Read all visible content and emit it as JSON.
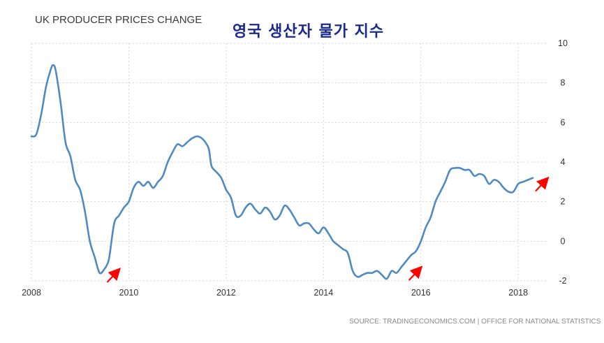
{
  "chart_data": {
    "type": "line",
    "title": "UK PRODUCER PRICES CHANGE",
    "subtitle": "영국 생산자 물가 지수",
    "source": "SOURCE: TRADINGECONOMICS.COM | OFFICE FOR NATIONAL STATISTICS",
    "xlim": [
      2008,
      2018.6
    ],
    "ylim": [
      -2,
      10
    ],
    "x_ticks": [
      2008,
      2010,
      2012,
      2014,
      2016,
      2018
    ],
    "x_tick_labels": [
      "2008",
      "2010",
      "2012",
      "2014",
      "2016",
      "2018"
    ],
    "y_ticks": [
      10,
      8,
      6,
      4,
      2,
      0,
      -2
    ],
    "y_tick_labels": [
      "10",
      "8",
      "6",
      "4",
      "2",
      "0",
      "-2"
    ],
    "grid": true,
    "line_color": "#4f8bc0",
    "arrow_color": "#ff0000",
    "series": [
      {
        "x": [
          2008.0,
          2008.1,
          2008.2,
          2008.3,
          2008.4,
          2008.45,
          2008.5,
          2008.6,
          2008.7,
          2008.8,
          2008.9,
          2009.0,
          2009.1,
          2009.2,
          2009.3,
          2009.4,
          2009.5,
          2009.55,
          2009.6,
          2009.7,
          2009.8,
          2009.9,
          2010.0,
          2010.1,
          2010.2,
          2010.3,
          2010.4,
          2010.5,
          2010.6,
          2010.7,
          2010.8,
          2010.9,
          2011.0,
          2011.1,
          2011.2,
          2011.3,
          2011.4,
          2011.5,
          2011.6,
          2011.65,
          2011.7,
          2011.8,
          2011.9,
          2012.0,
          2012.1,
          2012.2,
          2012.3,
          2012.4,
          2012.5,
          2012.6,
          2012.7,
          2012.8,
          2012.9,
          2013.0,
          2013.1,
          2013.2,
          2013.3,
          2013.4,
          2013.5,
          2013.6,
          2013.7,
          2013.8,
          2013.9,
          2014.0,
          2014.1,
          2014.2,
          2014.3,
          2014.4,
          2014.5,
          2014.6,
          2014.7,
          2014.8,
          2014.9,
          2015.0,
          2015.1,
          2015.2,
          2015.3,
          2015.4,
          2015.5,
          2015.6,
          2015.7,
          2015.8,
          2015.9,
          2016.0,
          2016.1,
          2016.2,
          2016.3,
          2016.4,
          2016.5,
          2016.6,
          2016.7,
          2016.8,
          2016.9,
          2017.0,
          2017.1,
          2017.2,
          2017.3,
          2017.4,
          2017.5,
          2017.6,
          2017.7,
          2017.8,
          2017.9,
          2018.0,
          2018.1,
          2018.2,
          2018.3
        ],
        "y": [
          5.3,
          5.4,
          6.4,
          7.8,
          8.7,
          8.9,
          8.6,
          7.0,
          5.0,
          4.3,
          3.1,
          2.6,
          1.5,
          0.0,
          -0.8,
          -1.6,
          -1.4,
          -1.2,
          -0.8,
          0.9,
          1.3,
          1.7,
          2.0,
          2.7,
          3.0,
          2.8,
          3.0,
          2.7,
          3.0,
          3.3,
          4.0,
          4.5,
          4.9,
          4.8,
          5.0,
          5.2,
          5.3,
          5.2,
          4.9,
          4.6,
          3.8,
          3.5,
          3.2,
          2.6,
          2.2,
          1.3,
          1.3,
          1.7,
          1.9,
          1.6,
          1.4,
          1.7,
          1.5,
          1.1,
          1.3,
          1.8,
          1.6,
          1.2,
          0.8,
          0.9,
          0.9,
          0.6,
          0.4,
          0.7,
          0.4,
          0.0,
          -0.2,
          -0.4,
          -0.6,
          -1.5,
          -1.8,
          -1.7,
          -1.6,
          -1.6,
          -1.5,
          -1.7,
          -1.9,
          -1.5,
          -1.6,
          -1.3,
          -1.0,
          -0.7,
          -0.5,
          0.0,
          0.7,
          1.2,
          2.0,
          2.5,
          3.0,
          3.6,
          3.7,
          3.7,
          3.6,
          3.6,
          3.3,
          3.4,
          3.3,
          2.9,
          3.1,
          3.0,
          2.7,
          2.5,
          2.5,
          2.9,
          3.0,
          3.1,
          3.2
        ],
        "y_note": ""
      }
    ],
    "annotations": [
      {
        "type": "arrow",
        "near": [
          2009.8,
          -1.4
        ]
      },
      {
        "type": "arrow",
        "near": [
          2016.0,
          -1.3
        ]
      },
      {
        "type": "arrow",
        "near": [
          2018.6,
          3.2
        ]
      }
    ]
  }
}
